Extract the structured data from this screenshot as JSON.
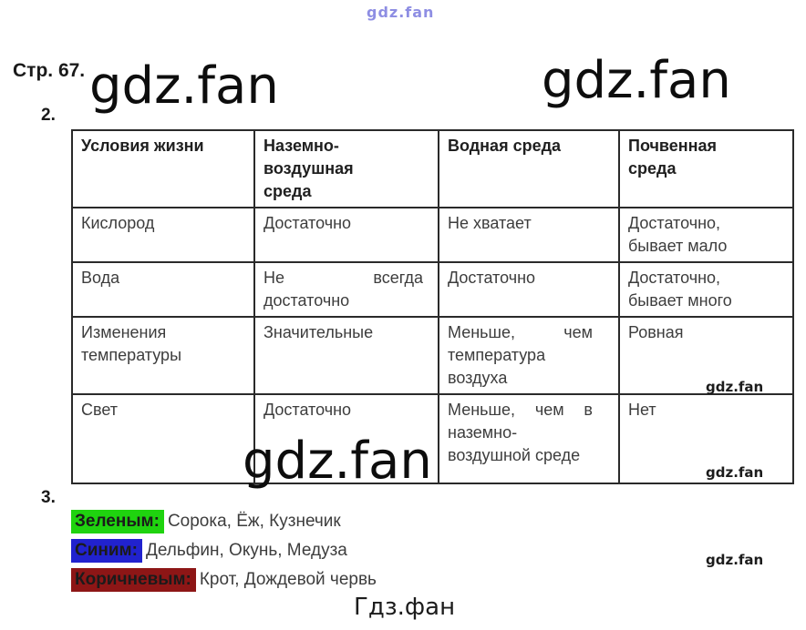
{
  "page": {
    "top_watermark": "gdz.fan",
    "page_label": "Стр. 67.",
    "task2_label": "2.",
    "task3_label": "3.",
    "watermark_large_1": "gdz.fan",
    "watermark_large_2": "gdz.fan",
    "watermark_large_mid": "gdz.fan",
    "watermark_small_1": "gdz.fan",
    "watermark_small_2": "gdz.fan",
    "watermark_small_3": "gdz.fan",
    "footer_brand": "Гдз.фан"
  },
  "table": {
    "headers": [
      "Условия жизни",
      "Наземно-воздушная среда",
      "Водная среда",
      "Почвенная среда"
    ],
    "rows": [
      {
        "cells": [
          "Кислород",
          "Достаточно",
          "Не хватает",
          "Достаточно, бывает мало"
        ]
      },
      {
        "cells": [
          "Вода",
          "Не всегда достаточно",
          "Достаточно",
          "Достаточно, бывает много"
        ]
      },
      {
        "cells": [
          "Изменения температуры",
          "Значительные",
          "Меньше, чем температура воздуха",
          "Ровная"
        ]
      },
      {
        "cells": [
          "Свет",
          "Достаточно",
          "Меньше, чем в наземно-воздушной среде",
          "Нет"
        ]
      }
    ]
  },
  "legend": {
    "items": [
      {
        "label": "Зеленым:",
        "text": "Сорока, Ёж, Кузнечик",
        "color": "#1fd30f"
      },
      {
        "label": "Синим:",
        "text": "Дельфин, Окунь, Медуза",
        "color": "#2122ce"
      },
      {
        "label": "Коричневым:",
        "text": "Крот, Дождевой червь",
        "color": "#8d1616"
      }
    ]
  }
}
